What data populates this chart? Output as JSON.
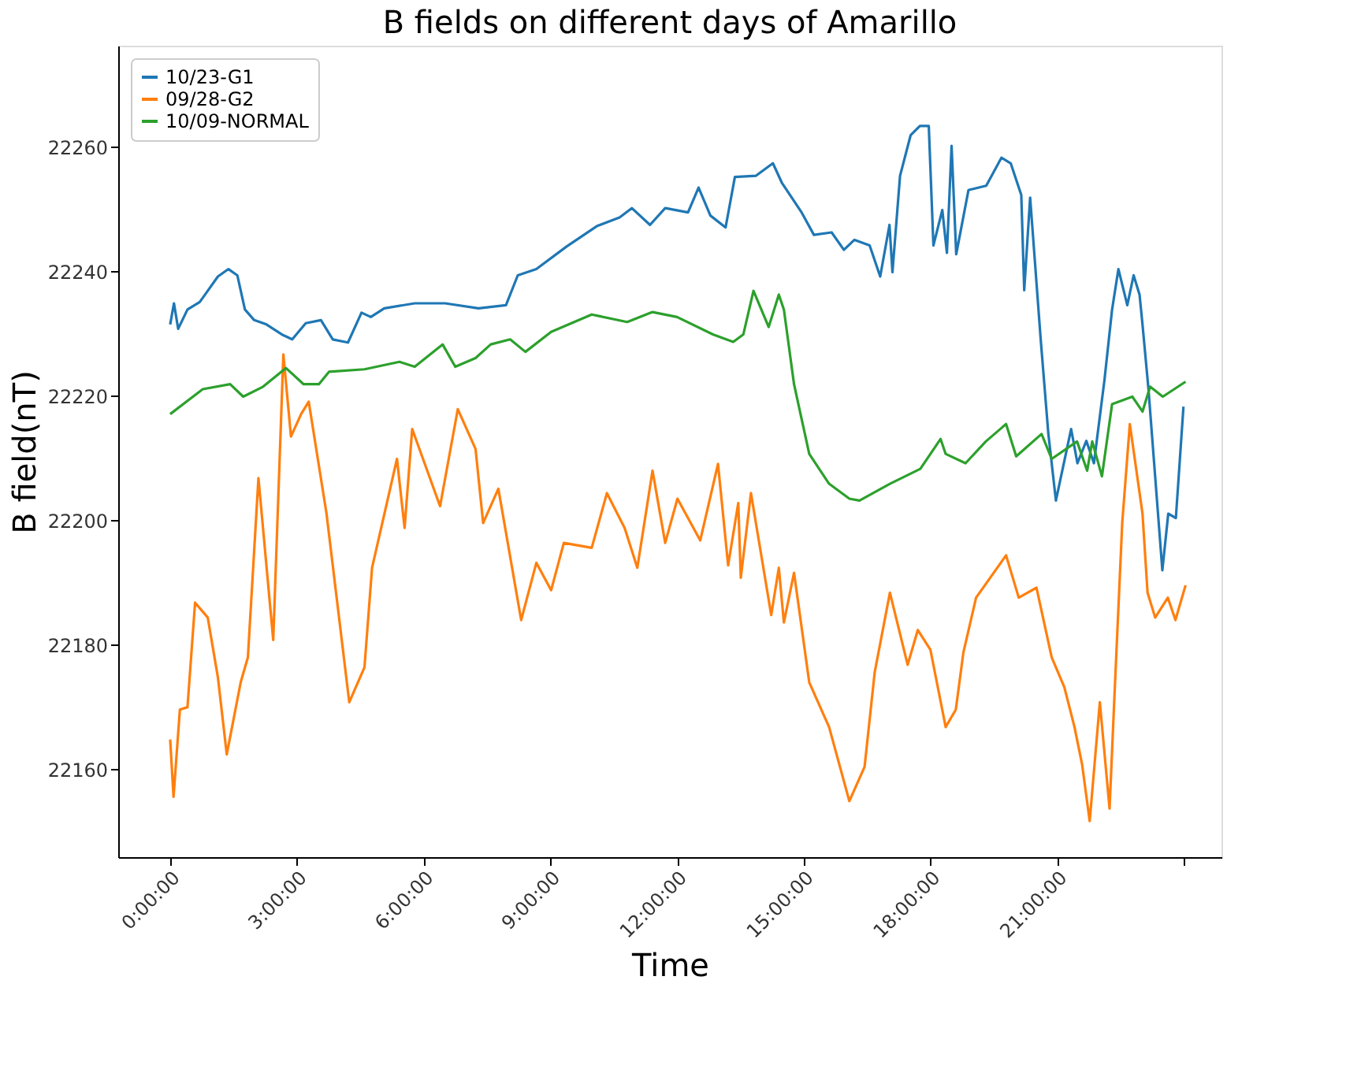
{
  "chart_data": {
    "type": "line",
    "title": "B fields on different days of Amarillo",
    "xlabel": "Time",
    "ylabel": "B field(nT)",
    "xlim": [
      -1.23,
      24.89
    ],
    "ylim": [
      22145.9,
      22276.3
    ],
    "xticks": [
      {
        "value": 0,
        "label": "0:00:00"
      },
      {
        "value": 3,
        "label": "3:00:00"
      },
      {
        "value": 6,
        "label": "6:00:00"
      },
      {
        "value": 9,
        "label": "9:00:00"
      },
      {
        "value": 12,
        "label": "12:00:00"
      },
      {
        "value": 15,
        "label": "15:00:00"
      },
      {
        "value": 18,
        "label": "18:00:00"
      },
      {
        "value": 21,
        "label": "21:00:00"
      },
      {
        "value": 24,
        "label": null
      }
    ],
    "yticks": [
      22160,
      22180,
      22200,
      22220,
      22240,
      22260
    ],
    "grid": false,
    "legend": "top left",
    "series": [
      {
        "name": "10/23-G1",
        "color": "#1f77b4",
        "x": [
          0.0,
          0.09,
          0.19,
          0.41,
          0.7,
          1.13,
          1.38,
          1.59,
          1.77,
          1.99,
          2.28,
          2.67,
          2.89,
          3.21,
          3.57,
          3.85,
          4.21,
          4.53,
          4.75,
          5.07,
          5.79,
          6.51,
          7.3,
          7.95,
          8.23,
          8.67,
          9.38,
          10.1,
          10.64,
          10.93,
          11.36,
          11.72,
          12.26,
          12.51,
          12.79,
          13.15,
          13.37,
          13.87,
          14.27,
          14.48,
          14.95,
          15.24,
          15.66,
          15.95,
          16.2,
          16.56,
          16.81,
          17.03,
          17.1,
          17.28,
          17.53,
          17.75,
          17.96,
          18.07,
          18.28,
          18.39,
          18.5,
          18.61,
          18.9,
          19.32,
          19.68,
          19.9,
          20.15,
          20.22,
          20.36,
          20.61,
          20.79,
          20.97,
          21.33,
          21.48,
          21.69,
          21.87,
          22.12,
          22.3,
          22.45,
          22.66,
          22.81,
          22.95,
          23.02,
          23.16,
          23.49,
          23.63,
          23.81,
          23.99
        ],
        "values": [
          22231.5,
          22234.9,
          22230.8,
          22233.9,
          22235.1,
          22239.2,
          22240.4,
          22239.4,
          22233.9,
          22232.2,
          22231.5,
          22229.8,
          22229.1,
          22231.7,
          22232.2,
          22229.1,
          22228.6,
          22233.4,
          22232.7,
          22234.1,
          22234.9,
          22234.9,
          22234.1,
          22234.6,
          22239.4,
          22240.4,
          22244.0,
          22247.3,
          22248.7,
          22250.2,
          22247.5,
          22250.2,
          22249.5,
          22253.5,
          22249.0,
          22247.1,
          22255.2,
          22255.4,
          22257.4,
          22254.3,
          22249.5,
          22245.9,
          22246.3,
          22243.5,
          22245.1,
          22244.2,
          22239.2,
          22247.5,
          22239.9,
          22255.4,
          22261.9,
          22263.4,
          22263.4,
          22244.2,
          22249.9,
          22243.0,
          22260.2,
          22242.8,
          22253.1,
          22253.8,
          22258.3,
          22257.4,
          22252.3,
          22237.0,
          22251.9,
          22229.1,
          22214.0,
          22203.2,
          22214.7,
          22209.2,
          22212.8,
          22209.2,
          22222.6,
          22233.9,
          22240.4,
          22234.6,
          22239.4,
          22236.3,
          22231.5,
          22221.2,
          22192.0,
          22201.1,
          22200.4,
          22218.3
        ]
      },
      {
        "name": "09/28-G2",
        "color": "#ff7f0e",
        "x": [
          0.0,
          0.08,
          0.23,
          0.41,
          0.59,
          0.89,
          1.13,
          1.34,
          1.67,
          1.84,
          2.09,
          2.44,
          2.68,
          2.86,
          3.1,
          3.28,
          3.7,
          4.24,
          4.6,
          4.78,
          5.37,
          5.55,
          5.73,
          6.39,
          6.81,
          7.23,
          7.41,
          7.77,
          8.31,
          8.67,
          9.02,
          9.32,
          9.98,
          10.34,
          10.76,
          11.06,
          11.42,
          11.72,
          12.01,
          12.55,
          12.97,
          13.21,
          13.45,
          13.51,
          13.75,
          14.23,
          14.41,
          14.53,
          14.77,
          15.13,
          15.6,
          16.08,
          16.44,
          16.68,
          17.04,
          17.46,
          17.7,
          18.0,
          18.36,
          18.6,
          18.78,
          19.08,
          19.79,
          20.09,
          20.51,
          20.87,
          21.17,
          21.41,
          21.59,
          21.77,
          22.01,
          22.24,
          22.36,
          22.54,
          22.72,
          23.02,
          23.14,
          23.32,
          23.62,
          23.8,
          24.04
        ],
        "values": [
          22164.8,
          22155.6,
          22169.6,
          22170.0,
          22186.8,
          22184.4,
          22174.8,
          22162.4,
          22174.0,
          22178.0,
          22206.8,
          22180.8,
          22226.7,
          22213.5,
          22217.1,
          22219.1,
          22201.2,
          22170.8,
          22176.4,
          22192.4,
          22209.9,
          22198.8,
          22214.7,
          22202.3,
          22217.9,
          22211.5,
          22199.6,
          22205.1,
          22184.0,
          22193.2,
          22188.8,
          22196.4,
          22195.6,
          22204.4,
          22198.8,
          22192.4,
          22208.0,
          22196.4,
          22203.5,
          22196.8,
          22209.1,
          22192.8,
          22202.8,
          22190.8,
          22204.4,
          22184.8,
          22192.4,
          22183.6,
          22191.6,
          22174.0,
          22166.8,
          22154.9,
          22160.4,
          22175.6,
          22188.4,
          22176.8,
          22182.4,
          22179.2,
          22166.8,
          22169.6,
          22178.8,
          22187.6,
          22194.4,
          22187.6,
          22189.2,
          22178.0,
          22173.2,
          22166.8,
          22160.8,
          22151.7,
          22170.8,
          22153.7,
          22172.4,
          22199.6,
          22215.5,
          22201.1,
          22188.4,
          22184.4,
          22187.6,
          22184.0,
          22189.6
        ]
      },
      {
        "name": "10/09-NORMAL",
        "color": "#2ca02c",
        "x": [
          0.0,
          0.77,
          1.42,
          1.73,
          2.2,
          2.74,
          3.16,
          3.52,
          3.76,
          4.6,
          5.43,
          5.79,
          6.45,
          6.75,
          7.23,
          7.59,
          8.05,
          8.41,
          9.02,
          9.98,
          10.82,
          11.42,
          12.0,
          12.85,
          13.33,
          13.57,
          13.81,
          14.17,
          14.41,
          14.53,
          14.77,
          15.13,
          15.6,
          16.08,
          16.32,
          17.04,
          17.76,
          18.24,
          18.36,
          18.83,
          19.31,
          19.79,
          20.03,
          20.63,
          20.87,
          21.47,
          21.71,
          21.83,
          22.06,
          22.3,
          22.78,
          23.02,
          23.2,
          23.5,
          24.04
        ],
        "values": [
          22217.1,
          22221.1,
          22221.9,
          22219.9,
          22221.5,
          22224.5,
          22221.9,
          22221.9,
          22223.9,
          22224.3,
          22225.5,
          22224.7,
          22228.3,
          22224.7,
          22226.1,
          22228.3,
          22229.1,
          22227.1,
          22230.3,
          22233.1,
          22231.9,
          22233.5,
          22232.7,
          22229.9,
          22228.7,
          22229.9,
          22236.9,
          22231.1,
          22236.3,
          22233.9,
          22221.9,
          22210.7,
          22205.9,
          22203.5,
          22203.2,
          22205.9,
          22208.3,
          22213.1,
          22210.7,
          22209.2,
          22212.7,
          22215.5,
          22210.3,
          22213.9,
          22209.9,
          22212.7,
          22208.0,
          22212.7,
          22207.1,
          22218.7,
          22219.9,
          22217.5,
          22221.5,
          22219.9,
          22222.3
        ]
      }
    ]
  }
}
